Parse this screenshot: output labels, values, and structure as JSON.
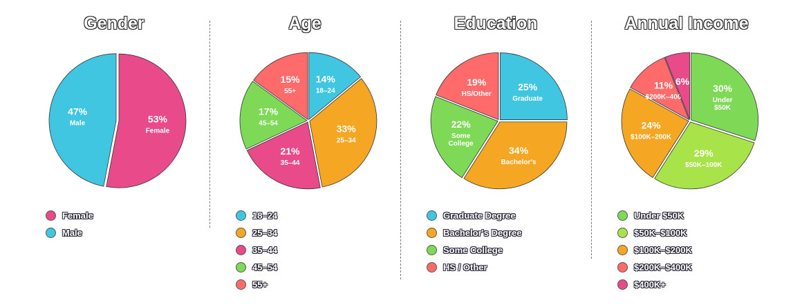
{
  "colors": {
    "pink": "#e84a8a",
    "cyan": "#41c6e2",
    "orange": "#f5a623",
    "green": "#7ed957",
    "red": "#ff6b6b",
    "lime": "#a8e34a"
  },
  "chart_data": [
    {
      "type": "pie",
      "title": "Gender",
      "slices": [
        {
          "name": "Female",
          "value": 53,
          "pct_label": "53%",
          "inner_label": "Female",
          "color": "#e84a8a"
        },
        {
          "name": "Male",
          "value": 47,
          "pct_label": "47%",
          "inner_label": "Male",
          "color": "#41c6e2"
        }
      ]
    },
    {
      "type": "pie",
      "title": "Age",
      "slices": [
        {
          "name": "18–24",
          "value": 14,
          "pct_label": "14%",
          "inner_label": "18–24",
          "color": "#41c6e2"
        },
        {
          "name": "25–34",
          "value": 33,
          "pct_label": "33%",
          "inner_label": "25–34",
          "color": "#f5a623"
        },
        {
          "name": "35–44",
          "value": 21,
          "pct_label": "21%",
          "inner_label": "35–44",
          "color": "#e84a8a"
        },
        {
          "name": "45–54",
          "value": 17,
          "pct_label": "17%",
          "inner_label": "45–54",
          "color": "#7ed957"
        },
        {
          "name": "55+",
          "value": 15,
          "pct_label": "15%",
          "inner_label": "55+",
          "color": "#ff6b6b"
        }
      ]
    },
    {
      "type": "pie",
      "title": "Education",
      "slices": [
        {
          "name": "Graduate Degree",
          "value": 25,
          "pct_label": "25%",
          "inner_label": "Graduate",
          "color": "#41c6e2"
        },
        {
          "name": "Bachelor's Degree",
          "value": 34,
          "pct_label": "34%",
          "inner_label": "Bachelor's",
          "color": "#f5a623"
        },
        {
          "name": "Some College",
          "value": 22,
          "pct_label": "22%",
          "inner_label": "Some\nCollege",
          "color": "#7ed957"
        },
        {
          "name": "HS / Other",
          "value": 19,
          "pct_label": "19%",
          "inner_label": "HS/Other",
          "color": "#ff6b6b"
        }
      ]
    },
    {
      "type": "pie",
      "title": "Annual Income",
      "slices": [
        {
          "name": "Under $50K",
          "value": 30,
          "pct_label": "30%",
          "inner_label": "Under\n$50K",
          "color": "#7ed957"
        },
        {
          "name": "$50K–$100K",
          "value": 29,
          "pct_label": "29%",
          "inner_label": "$50K–100K",
          "color": "#a8e34a"
        },
        {
          "name": "$100K–$200K",
          "value": 24,
          "pct_label": "24%",
          "inner_label": "$100K–200K",
          "color": "#f5a623"
        },
        {
          "name": "$200K–$400K",
          "value": 11,
          "pct_label": "11%",
          "inner_label": "$200K–400",
          "color": "#ff6b6b"
        },
        {
          "name": "$400K+",
          "value": 6,
          "pct_label": "6%",
          "inner_label": "",
          "color": "#e84a8a"
        }
      ]
    }
  ]
}
